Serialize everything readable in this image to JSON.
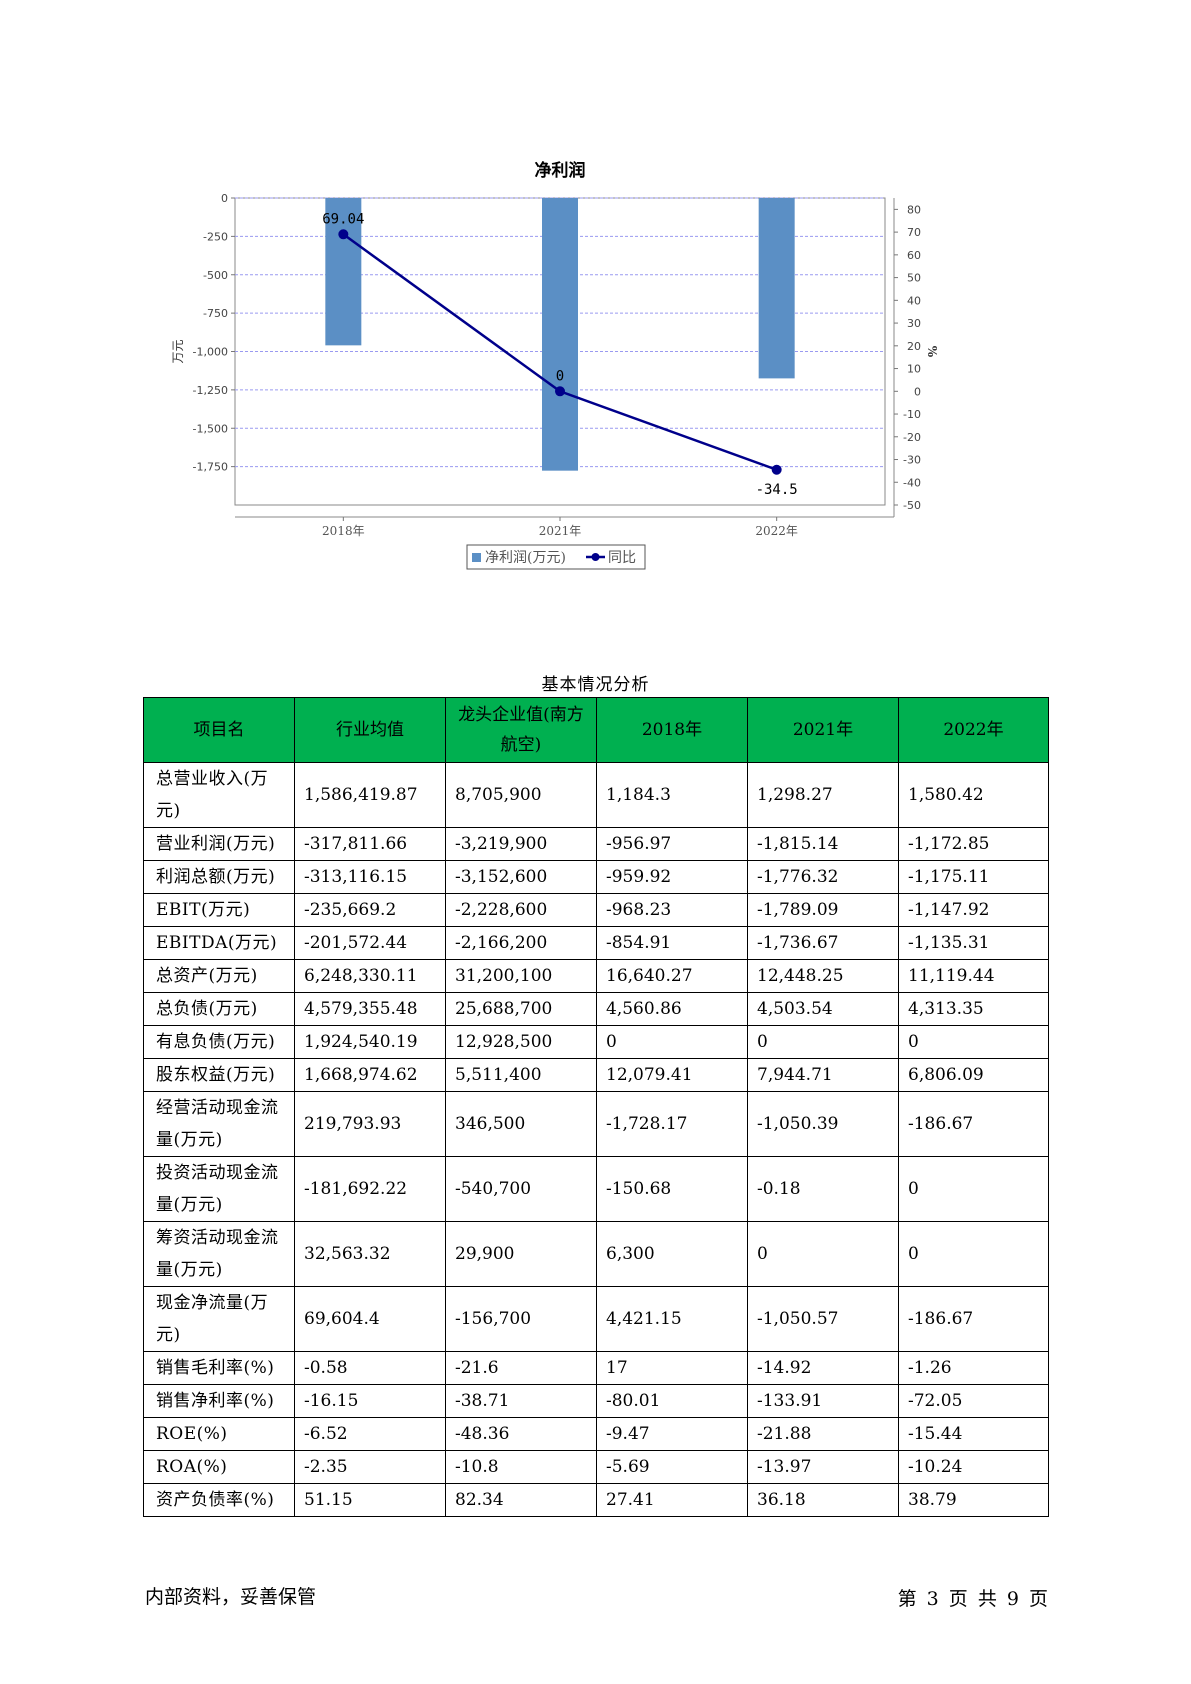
{
  "chart_data": {
    "type": "bar",
    "title": "净利润",
    "categories": [
      "2018年",
      "2021年",
      "2022年"
    ],
    "series": [
      {
        "name": "净利润(万元)",
        "kind": "bar",
        "axis": "left",
        "color": "#5b8fc5",
        "values": [
          -959.92,
          -1776.32,
          -1175.11
        ]
      },
      {
        "name": "同比",
        "kind": "line",
        "axis": "right",
        "color": "#00008b",
        "values": [
          69.04,
          0,
          -34.5
        ]
      }
    ],
    "ylabel": "万元",
    "y2label": "%",
    "ylim": [
      -2000,
      0
    ],
    "y2lim": [
      -50,
      85
    ],
    "yticks": [
      0,
      -250,
      -500,
      -750,
      -1000,
      -1250,
      -1500,
      -1750
    ],
    "ytick_labels": [
      "0",
      "-250",
      "-500",
      "-750",
      "-1,000",
      "-1,250",
      "-1,500",
      "-1,750"
    ],
    "y2ticks": [
      80,
      70,
      60,
      50,
      40,
      30,
      20,
      10,
      0,
      -10,
      -20,
      -30,
      -40,
      -50
    ],
    "data_labels": [
      "69.04",
      "0",
      "-34.5"
    ],
    "grid": true,
    "legend": "bottom"
  },
  "table": {
    "title": "基本情况分析",
    "headers": [
      "项目名",
      "行业均值",
      "龙头企业值(南方航空)",
      "2018年",
      "2021年",
      "2022年"
    ],
    "rows": [
      [
        "总营业收入(万元)",
        "1,586,419.87",
        "8,705,900",
        "1,184.3",
        "1,298.27",
        "1,580.42"
      ],
      [
        "营业利润(万元)",
        "-317,811.66",
        "-3,219,900",
        "-956.97",
        "-1,815.14",
        "-1,172.85"
      ],
      [
        "利润总额(万元)",
        "-313,116.15",
        "-3,152,600",
        "-959.92",
        "-1,776.32",
        "-1,175.11"
      ],
      [
        "EBIT(万元)",
        "-235,669.2",
        "-2,228,600",
        "-968.23",
        "-1,789.09",
        "-1,147.92"
      ],
      [
        "EBITDA(万元)",
        "-201,572.44",
        "-2,166,200",
        "-854.91",
        "-1,736.67",
        "-1,135.31"
      ],
      [
        "总资产(万元)",
        "6,248,330.11",
        "31,200,100",
        "16,640.27",
        "12,448.25",
        "11,119.44"
      ],
      [
        "总负债(万元)",
        "4,579,355.48",
        "25,688,700",
        "4,560.86",
        "4,503.54",
        "4,313.35"
      ],
      [
        "有息负债(万元)",
        "1,924,540.19",
        "12,928,500",
        "0",
        "0",
        "0"
      ],
      [
        "股东权益(万元)",
        "1,668,974.62",
        "5,511,400",
        "12,079.41",
        "7,944.71",
        "6,806.09"
      ],
      [
        "经营活动现金流量(万元)",
        "219,793.93",
        "346,500",
        "-1,728.17",
        "-1,050.39",
        "-186.67"
      ],
      [
        "投资活动现金流量(万元)",
        "-181,692.22",
        "-540,700",
        "-150.68",
        "-0.18",
        "0"
      ],
      [
        "筹资活动现金流量(万元)",
        "32,563.32",
        "29,900",
        "6,300",
        "0",
        "0"
      ],
      [
        "现金净流量(万元)",
        "69,604.4",
        "-156,700",
        "4,421.15",
        "-1,050.57",
        "-186.67"
      ],
      [
        "销售毛利率(%)",
        "-0.58",
        "-21.6",
        "17",
        "-14.92",
        "-1.26"
      ],
      [
        "销售净利率(%)",
        "-16.15",
        "-38.71",
        "-80.01",
        "-133.91",
        "-72.05"
      ],
      [
        "ROE(%)",
        "-6.52",
        "-48.36",
        "-9.47",
        "-21.88",
        "-15.44"
      ],
      [
        "ROA(%)",
        "-2.35",
        "-10.8",
        "-5.69",
        "-13.97",
        "-10.24"
      ],
      [
        "资产负债率(%)",
        "51.15",
        "82.34",
        "27.41",
        "36.18",
        "38.79"
      ]
    ]
  },
  "footer": {
    "left": "内部资料，妥善保管",
    "right": "第 3 页  共 9 页"
  }
}
